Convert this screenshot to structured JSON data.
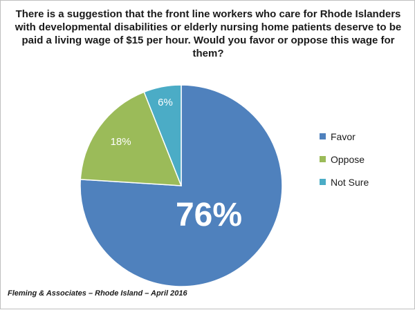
{
  "chart_data": {
    "type": "pie",
    "title": "There is a suggestion that the front line workers who care for Rhode Islanders with developmental disabilities or elderly nursing home patients deserve to be paid a living wage of $15 per hour. Would you favor or oppose this wage for them?",
    "slices": [
      {
        "label": "Favor",
        "value": 76,
        "data_label": "76%",
        "color": "#4f81bd"
      },
      {
        "label": "Oppose",
        "value": 18,
        "data_label": "18%",
        "color": "#9bbb59"
      },
      {
        "label": "Not Sure",
        "value": 6,
        "data_label": "6%",
        "color": "#4bacc6"
      }
    ],
    "legend": "right"
  },
  "source": "Fleming & Associates – Rhode Island – April 2016"
}
